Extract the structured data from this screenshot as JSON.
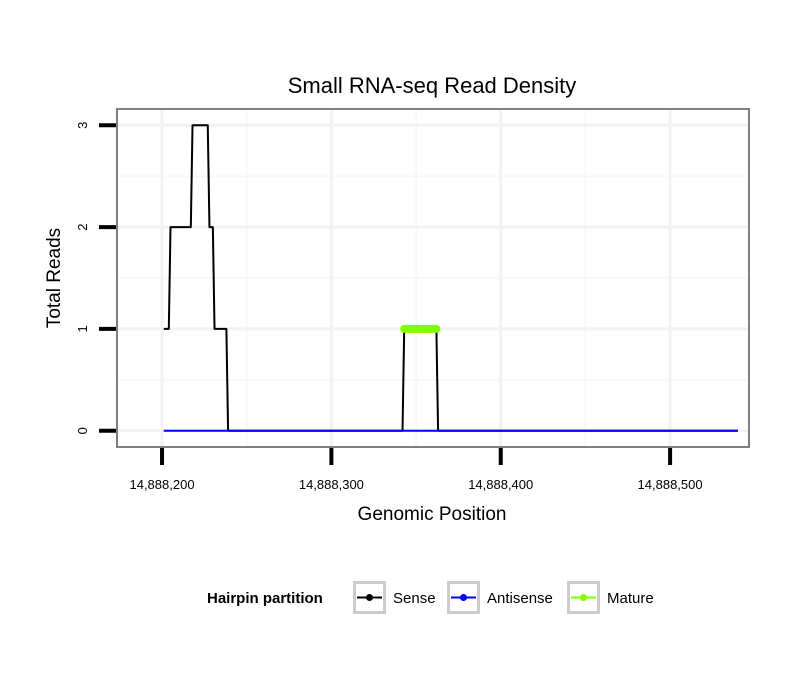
{
  "chart_data": {
    "type": "line",
    "title": "Small RNA-seq Read Density",
    "xlabel": "Genomic Position",
    "ylabel": "Total Reads",
    "xlim": [
      14888174,
      14888546
    ],
    "ylim": [
      -0.15,
      3.15
    ],
    "x_ticks": [
      14888200,
      14888300,
      14888400,
      14888500
    ],
    "x_tick_labels": [
      "14,888,200",
      "14,888,300",
      "14,888,400",
      "14,888,500"
    ],
    "y_ticks": [
      0,
      1,
      2,
      3
    ],
    "y_tick_labels": [
      "0",
      "1",
      "2",
      "3"
    ],
    "grid": true,
    "legend": {
      "title": "Hairpin partition",
      "position": "bottom",
      "entries": [
        "Sense",
        "Antisense",
        "Mature"
      ]
    },
    "series": [
      {
        "name": "Sense",
        "color": "#000000",
        "x": [
          14888201,
          14888204,
          14888205,
          14888217,
          14888218,
          14888227,
          14888228,
          14888230,
          14888231,
          14888238,
          14888239,
          14888342,
          14888343,
          14888362,
          14888363,
          14888540
        ],
        "values": [
          1,
          1,
          2,
          2,
          3,
          3,
          2,
          2,
          1,
          1,
          0,
          0,
          1,
          1,
          0,
          0
        ]
      },
      {
        "name": "Antisense",
        "color": "#0000ff",
        "x": [
          14888201,
          14888540
        ],
        "values": [
          0,
          0
        ]
      },
      {
        "name": "Mature",
        "color": "#7fff00",
        "x": [
          14888343,
          14888362
        ],
        "values": [
          1,
          1
        ]
      }
    ]
  }
}
